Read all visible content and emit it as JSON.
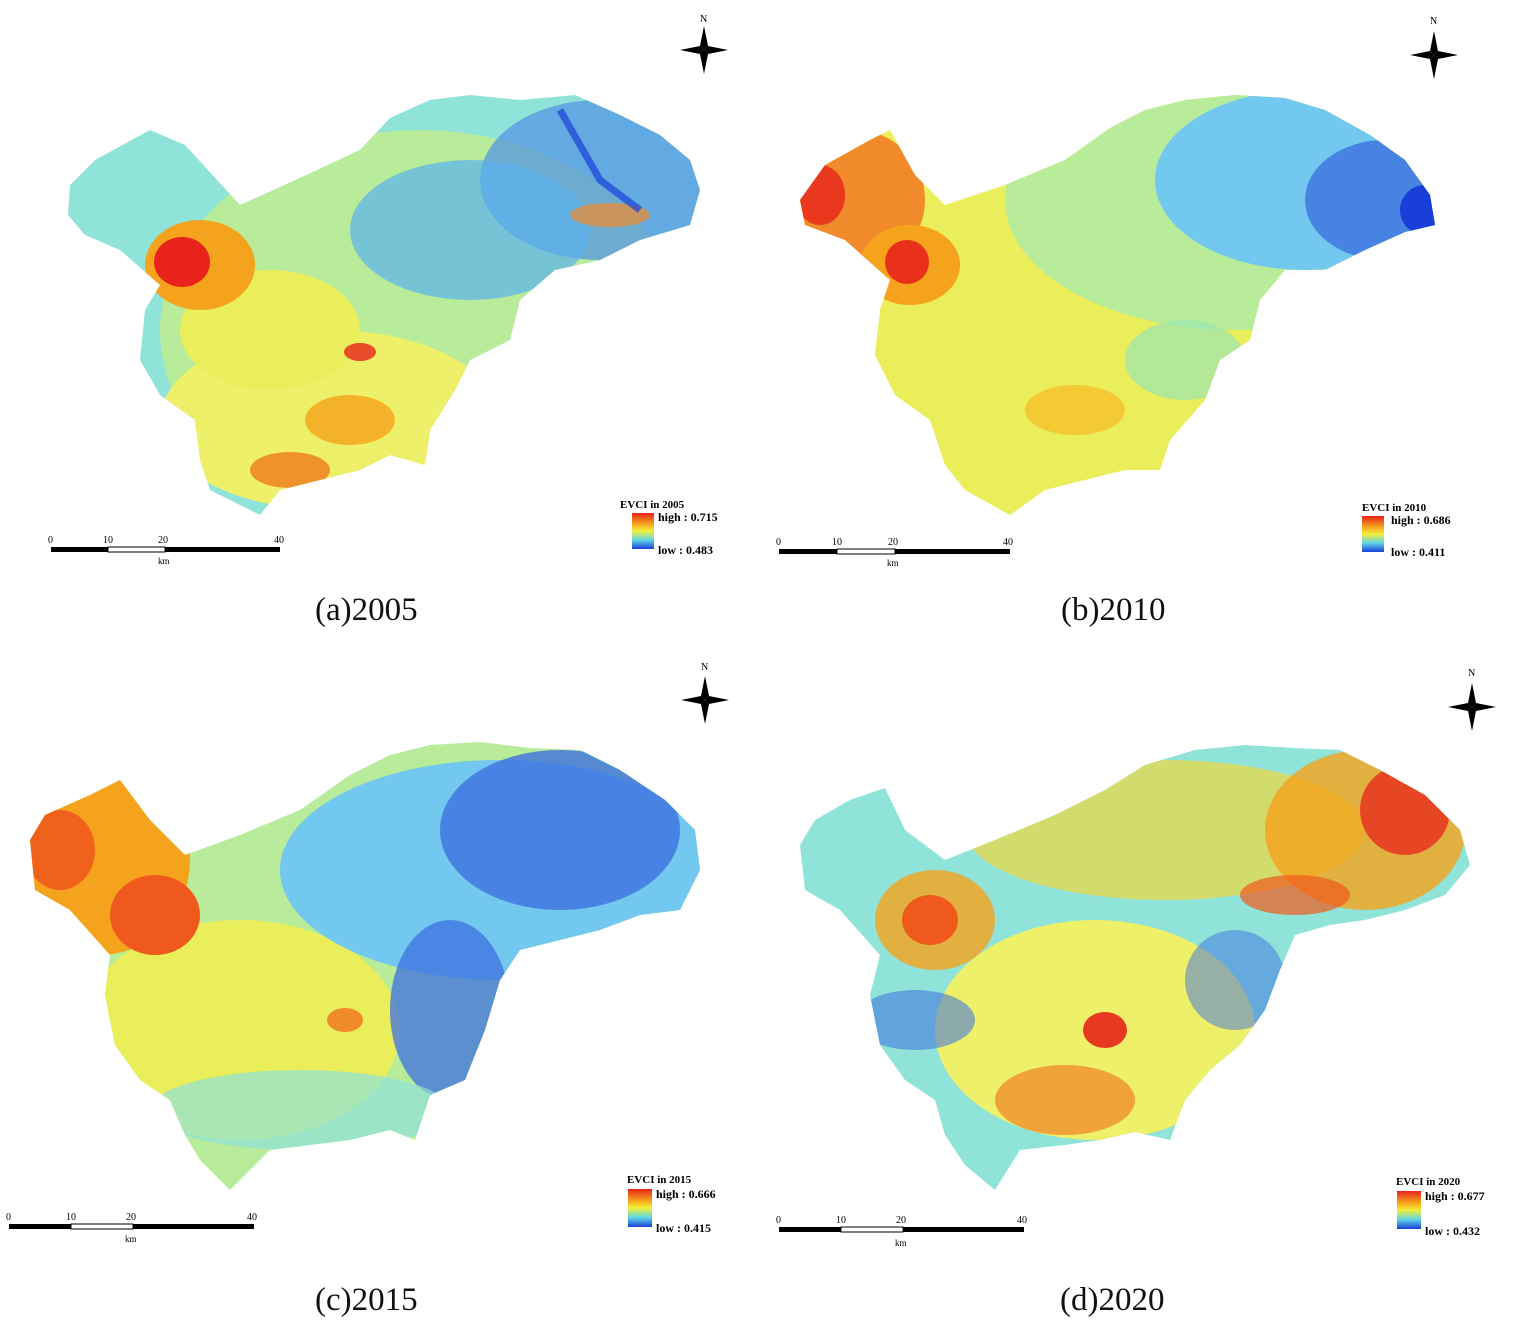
{
  "colors": {
    "high": "#e8231b",
    "upper": "#f5a21c",
    "mid": "#f4ef3a",
    "cyan": "#5ed6e6",
    "low": "#1a3ed8"
  },
  "panels": [
    {
      "caption": "(a)2005",
      "legend": {
        "title": "EVCI in 2005",
        "high": "high : 0.715",
        "low": "low : 0.483"
      },
      "scale": {
        "ticks": [
          "0",
          "10",
          "20",
          "40"
        ],
        "unit": "km"
      },
      "north": "N"
    },
    {
      "caption": "(b)2010",
      "legend": {
        "title": "EVCI in 2010",
        "high": "high : 0.686",
        "low": "low : 0.411"
      },
      "scale": {
        "ticks": [
          "0",
          "10",
          "20",
          "40"
        ],
        "unit": "km"
      },
      "north": "N"
    },
    {
      "caption": "(c)2015",
      "legend": {
        "title": "EVCI in 2015",
        "high": "high : 0.666",
        "low": "low : 0.415"
      },
      "scale": {
        "ticks": [
          "0",
          "10",
          "20",
          "40"
        ],
        "unit": "km"
      },
      "north": "N"
    },
    {
      "caption": "(d)2020",
      "legend": {
        "title": "EVCI in 2020",
        "high": "high : 0.677",
        "low": "low : 0.432"
      },
      "scale": {
        "ticks": [
          "0",
          "10",
          "20",
          "40"
        ],
        "unit": "km"
      },
      "north": "N"
    }
  ]
}
